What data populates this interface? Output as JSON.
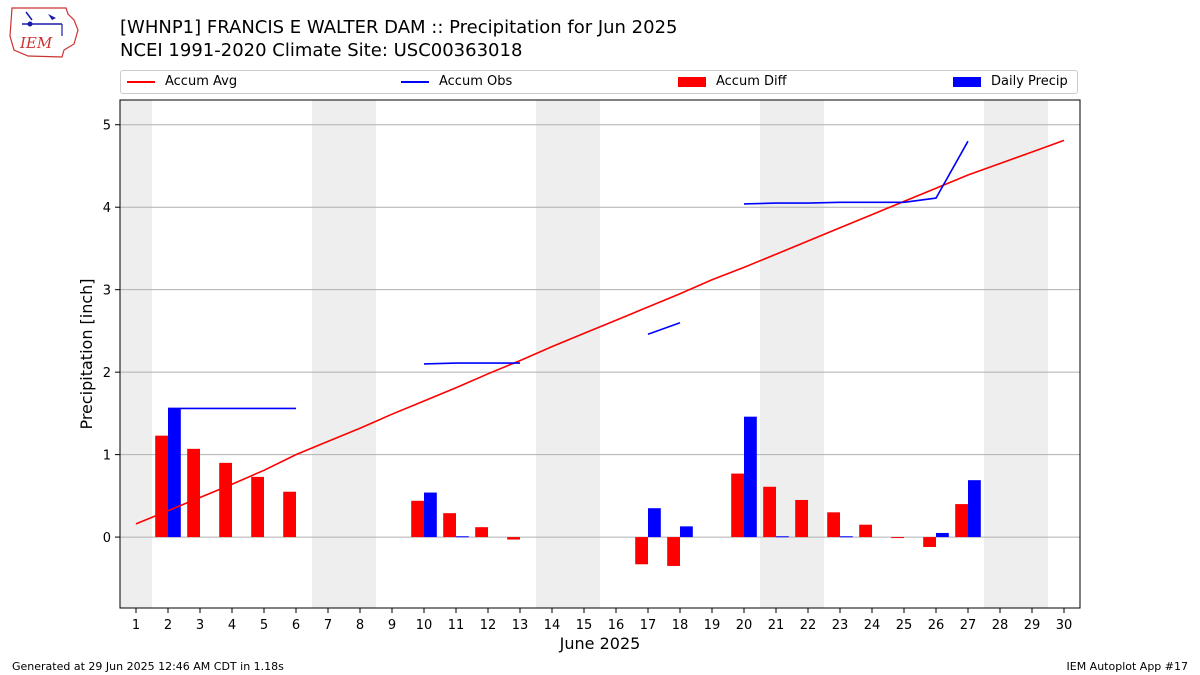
{
  "header": {
    "title": "[WHNP1] FRANCIS E WALTER DAM :: Precipitation for Jun 2025",
    "subtitle": "NCEI 1991-2020 Climate Site: USC00363018",
    "logo_text": "IEM"
  },
  "footer": {
    "left": "Generated at 29 Jun 2025 12:46 AM CDT in 1.18s",
    "right": "IEM Autoplot App #17"
  },
  "colors": {
    "avg": "#ff0000",
    "obs": "#0000ff",
    "diff": "#ff0000",
    "daily": "#0000ff",
    "weekend": "#eeeeee",
    "grid": "#b0b0b0"
  },
  "chart_data": {
    "type": "bar",
    "xlabel": "June 2025",
    "ylabel": "Precipitation [inch]",
    "xlim": [
      0.5,
      30.5
    ],
    "ylim": [
      -0.86,
      5.3
    ],
    "yticks": [
      0,
      1,
      2,
      3,
      4,
      5
    ],
    "x": [
      1,
      2,
      3,
      4,
      5,
      6,
      7,
      8,
      9,
      10,
      11,
      12,
      13,
      14,
      15,
      16,
      17,
      18,
      19,
      20,
      21,
      22,
      23,
      24,
      25,
      26,
      27,
      28,
      29,
      30
    ],
    "weekend_bands": [
      [
        0.5,
        1.5
      ],
      [
        6.5,
        8.5
      ],
      [
        13.5,
        15.5
      ],
      [
        20.5,
        22.5
      ],
      [
        27.5,
        29.5
      ]
    ],
    "grid": true,
    "legend": [
      "Accum Avg",
      "Accum Obs",
      "Accum Diff",
      "Daily Precip"
    ],
    "series": [
      {
        "name": "Accum Avg",
        "kind": "line",
        "values": [
          0.16,
          0.32,
          0.48,
          0.64,
          0.81,
          1.0,
          1.16,
          1.32,
          1.49,
          1.65,
          1.81,
          1.98,
          2.14,
          2.31,
          2.47,
          2.63,
          2.79,
          2.95,
          3.12,
          3.27,
          3.43,
          3.59,
          3.75,
          3.91,
          4.07,
          4.23,
          4.39,
          4.53,
          4.67,
          4.81
        ]
      },
      {
        "name": "Accum Obs",
        "kind": "line",
        "values": [
          null,
          1.56,
          1.56,
          1.56,
          1.56,
          1.56,
          null,
          null,
          null,
          2.1,
          2.11,
          2.11,
          2.11,
          null,
          null,
          null,
          2.46,
          2.6,
          null,
          4.04,
          4.05,
          4.05,
          4.06,
          4.06,
          4.06,
          4.11,
          4.8,
          null,
          null,
          null
        ]
      },
      {
        "name": "Accum Diff",
        "kind": "bar",
        "values": [
          null,
          1.23,
          1.07,
          0.9,
          0.73,
          0.55,
          null,
          null,
          null,
          0.44,
          0.29,
          0.12,
          -0.03,
          null,
          null,
          null,
          -0.33,
          -0.35,
          null,
          0.77,
          0.61,
          0.45,
          0.3,
          0.15,
          -0.01,
          -0.12,
          0.4,
          null,
          null,
          null
        ]
      },
      {
        "name": "Daily Precip",
        "kind": "bar",
        "values": [
          null,
          1.56,
          null,
          null,
          null,
          null,
          null,
          null,
          null,
          0.54,
          0.01,
          null,
          null,
          null,
          null,
          null,
          0.35,
          0.13,
          null,
          1.46,
          0.01,
          null,
          0.01,
          null,
          null,
          0.05,
          0.69,
          null,
          null,
          null
        ]
      }
    ]
  }
}
